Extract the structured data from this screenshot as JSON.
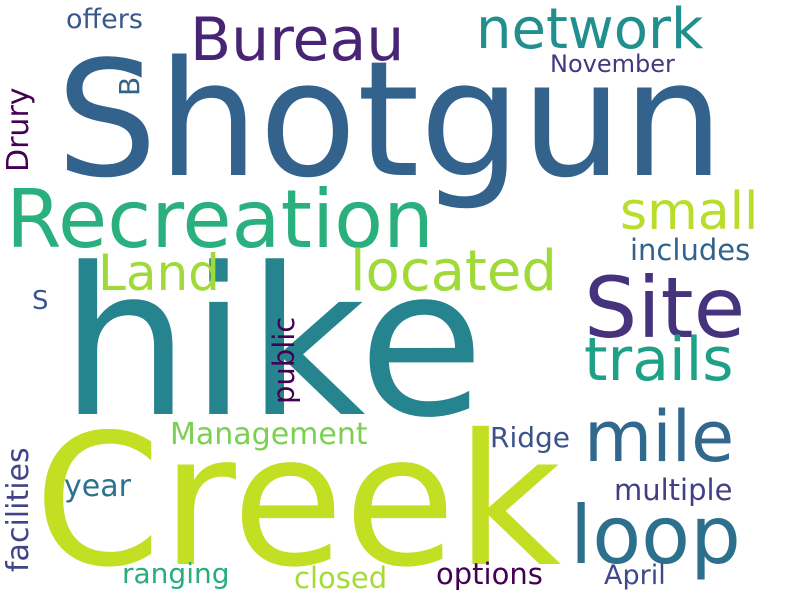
{
  "words": [
    {
      "text": "Shotgun",
      "color": "#33638d"
    },
    {
      "text": "hike",
      "color": "#25848e"
    },
    {
      "text": "Creek",
      "color": "#c2df23"
    },
    {
      "text": "Recreation",
      "color": "#2ab07f"
    },
    {
      "text": "Bureau",
      "color": "#482475"
    },
    {
      "text": "network",
      "color": "#218f8d"
    },
    {
      "text": "offers",
      "color": "#38598c"
    },
    {
      "text": "November",
      "color": "#453781"
    },
    {
      "text": "B",
      "color": "#33638d"
    },
    {
      "text": "Drury",
      "color": "#440154"
    },
    {
      "text": "small",
      "color": "#b8de29"
    },
    {
      "text": "Land",
      "color": "#a0da39"
    },
    {
      "text": "located",
      "color": "#a0da39"
    },
    {
      "text": "Site",
      "color": "#46337e"
    },
    {
      "text": "includes",
      "color": "#33638d"
    },
    {
      "text": "S",
      "color": "#39558c"
    },
    {
      "text": "public",
      "color": "#440154"
    },
    {
      "text": "trails",
      "color": "#1fa187"
    },
    {
      "text": "mile",
      "color": "#31688e"
    },
    {
      "text": "Management",
      "color": "#7ad151"
    },
    {
      "text": "Ridge",
      "color": "#3b528b"
    },
    {
      "text": "facilities",
      "color": "#414487"
    },
    {
      "text": "year",
      "color": "#2c728e"
    },
    {
      "text": "loop",
      "color": "#2d708e"
    },
    {
      "text": "multiple",
      "color": "#433e85"
    },
    {
      "text": "ranging",
      "color": "#27ad81"
    },
    {
      "text": "closed",
      "color": "#a5db36"
    },
    {
      "text": "options",
      "color": "#440154"
    },
    {
      "text": "April",
      "color": "#3e4989"
    }
  ]
}
